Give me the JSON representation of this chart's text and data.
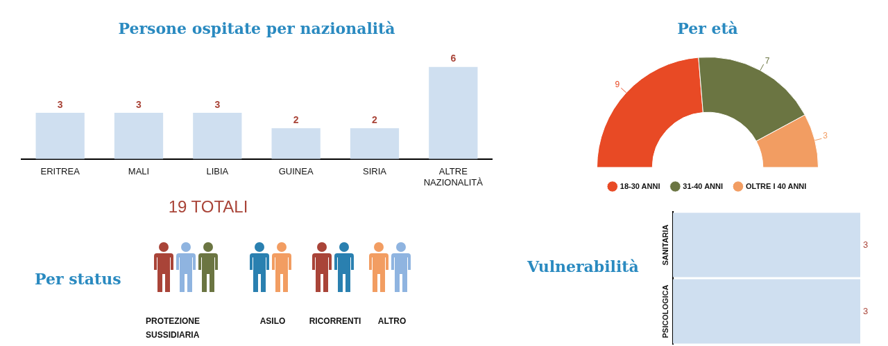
{
  "chart_data": [
    {
      "type": "bar",
      "title": "Persone ospitate per nazionalità",
      "categories": [
        "ERITREA",
        "MALI",
        "LIBIA",
        "GUINEA",
        "SIRIA",
        "ALTRE NAZIONALITÀ"
      ],
      "values": [
        3,
        3,
        3,
        2,
        2,
        6
      ],
      "color": "#cfdff0",
      "data_labels": true,
      "annotations": [
        "19 TOTALI"
      ]
    },
    {
      "type": "donut",
      "title": "Per età",
      "categories": [
        "18-30 ANNI",
        "31-40 ANNI",
        "OLTRE I 40 ANNI"
      ],
      "values": [
        9,
        7,
        3
      ],
      "colors": [
        "#e84a25",
        "#6b7542",
        "#f29d62"
      ],
      "data_labels": true,
      "legend": "bottom"
    },
    {
      "type": "other",
      "title": "Per status",
      "annotations": [
        "PROTEZIONE SUSSIDIARIA",
        "ASILO",
        "RICORRENTI",
        "ALTRO"
      ]
    },
    {
      "type": "bar",
      "orientation": "horizontal",
      "title": "Vulnerabilità",
      "categories": [
        "SANITARIA",
        "PSICOLOGICA"
      ],
      "values": [
        3,
        3
      ],
      "color": "#cfdff0",
      "data_labels": true
    }
  ]
}
